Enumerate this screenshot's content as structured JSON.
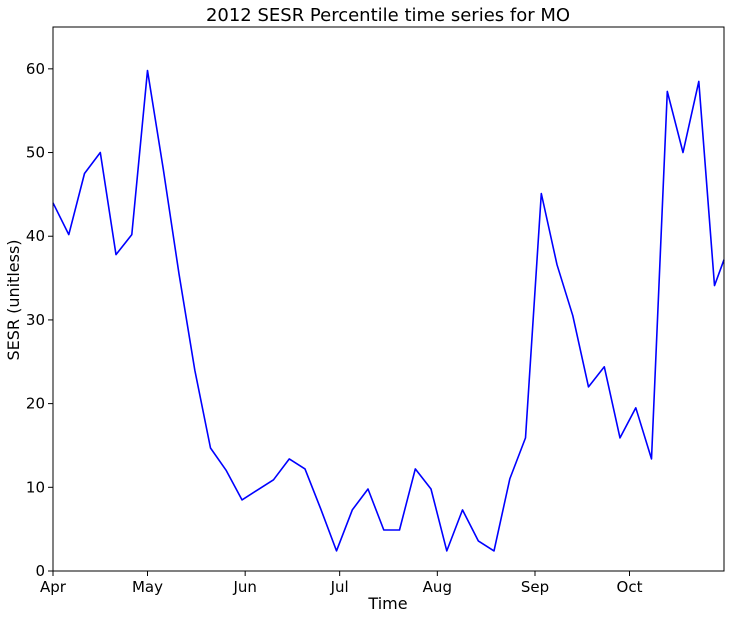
{
  "chart_data": {
    "type": "line",
    "title": "2012 SESR Percentile time series for MO",
    "xlabel": "Time",
    "ylabel": "SESR (unitless)",
    "ylim": [
      0,
      65
    ],
    "xlim": [
      "2012-04-01",
      "2012-10-31"
    ],
    "x_ticks": [
      {
        "date": "2012-04-01",
        "label": "Apr"
      },
      {
        "date": "2012-05-01",
        "label": "May"
      },
      {
        "date": "2012-06-01",
        "label": "Jun"
      },
      {
        "date": "2012-07-01",
        "label": "Jul"
      },
      {
        "date": "2012-08-01",
        "label": "Aug"
      },
      {
        "date": "2012-09-01",
        "label": "Sep"
      },
      {
        "date": "2012-10-01",
        "label": "Oct"
      }
    ],
    "y_ticks": [
      0,
      10,
      20,
      30,
      40,
      50,
      60
    ],
    "grid": false,
    "legend": "none",
    "series": [
      {
        "color": "#0000ff",
        "x": [
          "2012-04-01",
          "2012-04-06",
          "2012-04-11",
          "2012-04-16",
          "2012-04-21",
          "2012-04-26",
          "2012-05-01",
          "2012-05-06",
          "2012-05-11",
          "2012-05-16",
          "2012-05-21",
          "2012-05-26",
          "2012-05-31",
          "2012-06-05",
          "2012-06-10",
          "2012-06-15",
          "2012-06-20",
          "2012-06-25",
          "2012-06-30",
          "2012-07-05",
          "2012-07-10",
          "2012-07-15",
          "2012-07-20",
          "2012-07-25",
          "2012-07-30",
          "2012-08-04",
          "2012-08-09",
          "2012-08-14",
          "2012-08-19",
          "2012-08-24",
          "2012-08-29",
          "2012-09-03",
          "2012-09-08",
          "2012-09-13",
          "2012-09-18",
          "2012-09-23",
          "2012-09-28",
          "2012-10-03",
          "2012-10-08",
          "2012-10-13",
          "2012-10-18",
          "2012-10-23",
          "2012-10-28",
          "2012-10-31"
        ],
        "values": [
          44.0,
          40.2,
          47.5,
          50.0,
          37.8,
          40.2,
          59.8,
          48.0,
          35.5,
          24.0,
          14.7,
          12.0,
          8.5,
          9.7,
          10.9,
          13.4,
          12.2,
          7.4,
          2.4,
          7.3,
          9.8,
          4.9,
          4.9,
          12.2,
          9.8,
          2.4,
          7.3,
          3.6,
          2.4,
          11.0,
          15.9,
          45.1,
          36.6,
          30.5,
          22.0,
          24.4,
          15.9,
          19.5,
          13.4,
          57.3,
          50.0,
          58.5,
          34.1,
          37.2
        ]
      }
    ]
  }
}
